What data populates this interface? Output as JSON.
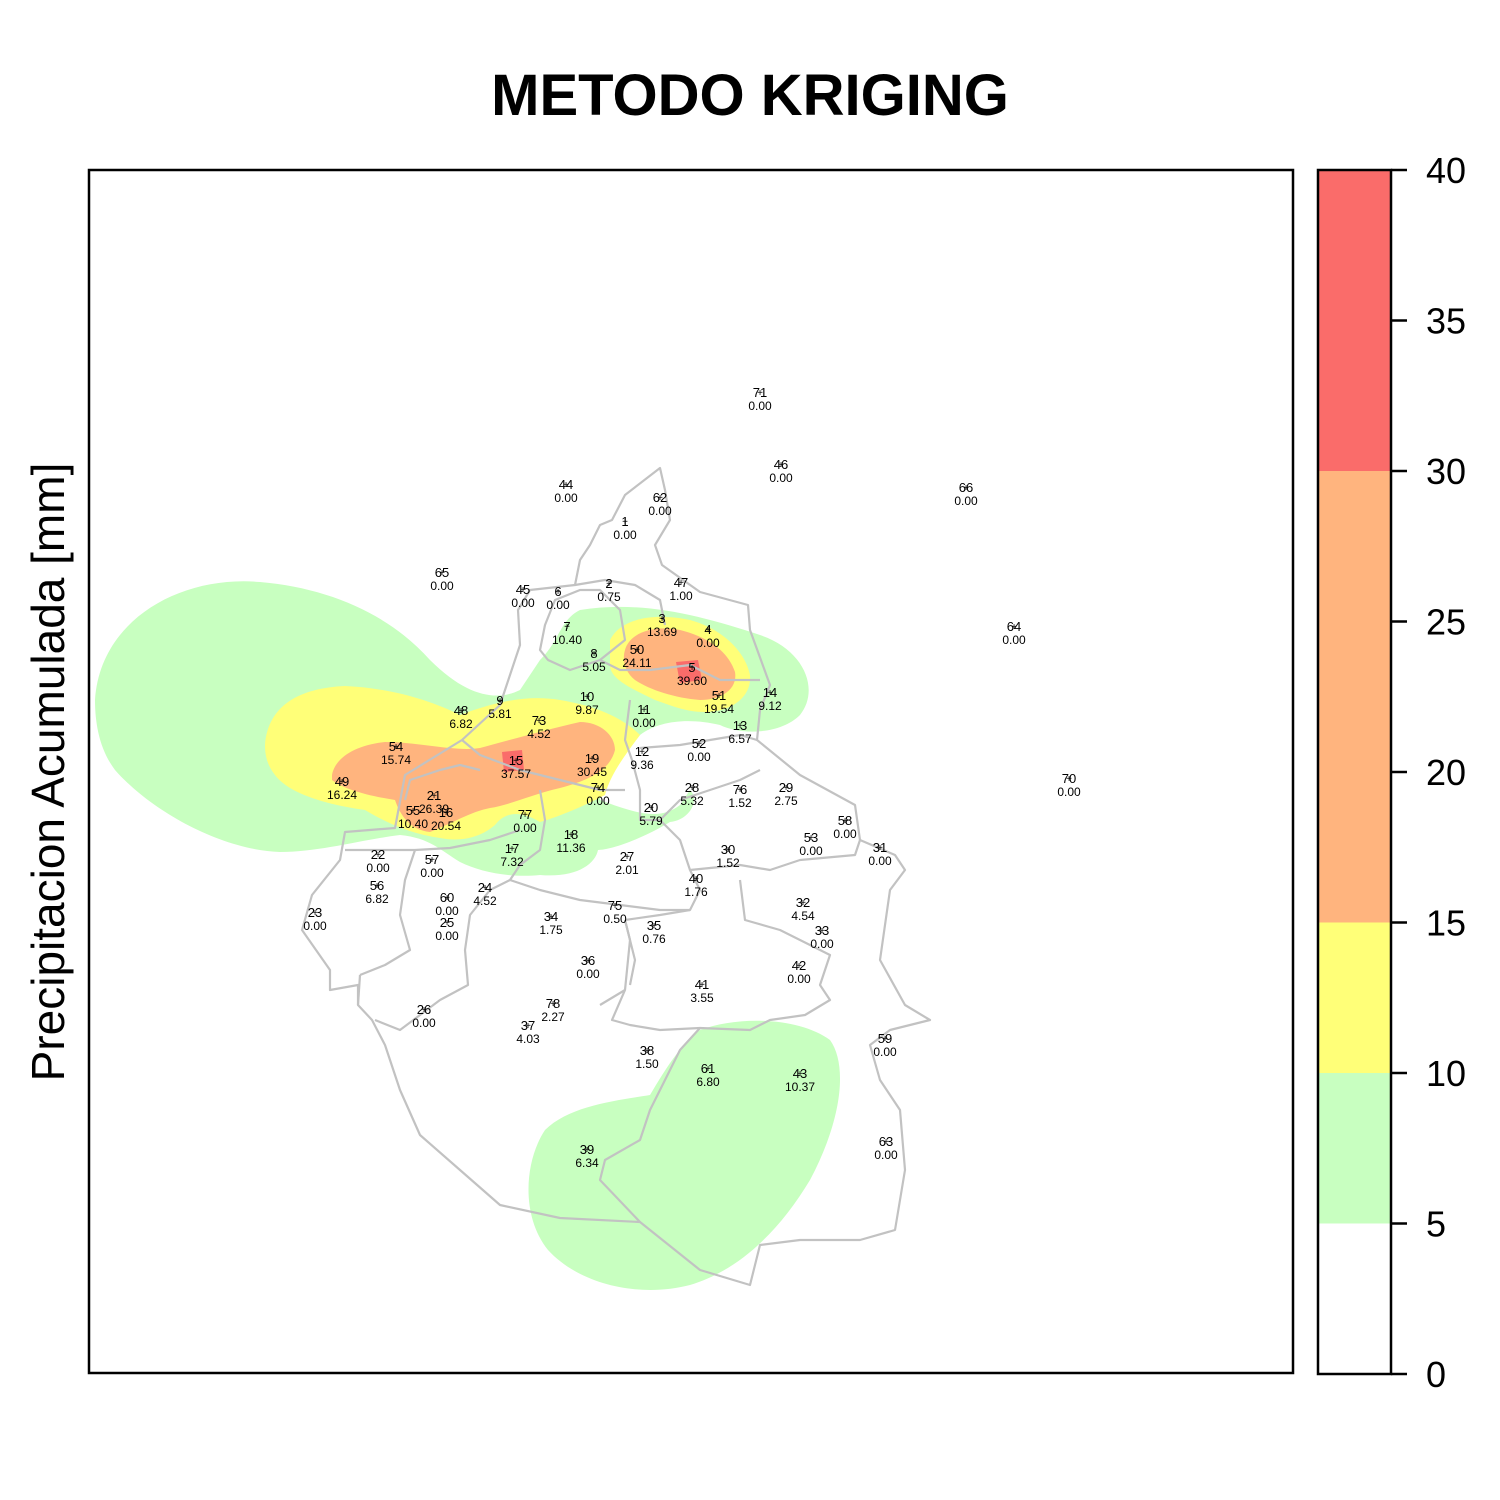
{
  "title": "METODO KRIGING",
  "legend_title": "Precipitacion Acumulada [mm]",
  "colors": {
    "band_0_5": "#ffffff",
    "band_5_10": "#c8ffc0",
    "band_10_15": "#ffff78",
    "band_15_30": "#ffb47e",
    "band_30_40": "#fa6c6a",
    "boundary": "#c2c2c2"
  },
  "chart_data": {
    "type": "heatmap",
    "method": "kriging",
    "legend_ticks": [
      "0",
      "5",
      "10",
      "15",
      "20",
      "25",
      "30",
      "35",
      "40"
    ],
    "legend_bands": [
      {
        "from": 0,
        "to": 5,
        "color": "#ffffff"
      },
      {
        "from": 5,
        "to": 10,
        "color": "#c8ffc0"
      },
      {
        "from": 10,
        "to": 15,
        "color": "#ffff78"
      },
      {
        "from": 15,
        "to": 30,
        "color": "#ffb47e"
      },
      {
        "from": 30,
        "to": 40,
        "color": "#fa6c6a"
      }
    ],
    "stations": [
      {
        "id": "71",
        "value": "0.00"
      },
      {
        "id": "46",
        "value": "0.00"
      },
      {
        "id": "66",
        "value": "0.00"
      },
      {
        "id": "44",
        "value": "0.00"
      },
      {
        "id": "62",
        "value": "0.00"
      },
      {
        "id": "1",
        "value": "0.00"
      },
      {
        "id": "65",
        "value": "0.00"
      },
      {
        "id": "45",
        "value": "0.00"
      },
      {
        "id": "6",
        "value": "0.00"
      },
      {
        "id": "2",
        "value": "0.75"
      },
      {
        "id": "47",
        "value": "1.00"
      },
      {
        "id": "64",
        "value": "0.00"
      },
      {
        "id": "7",
        "value": "10.40"
      },
      {
        "id": "3",
        "value": "13.69"
      },
      {
        "id": "4",
        "value": "0.00"
      },
      {
        "id": "8",
        "value": "5.05"
      },
      {
        "id": "50",
        "value": "24.11"
      },
      {
        "id": "5",
        "value": "39.60"
      },
      {
        "id": "51",
        "value": "19.54"
      },
      {
        "id": "14",
        "value": "9.12"
      },
      {
        "id": "10",
        "value": "9.87"
      },
      {
        "id": "9",
        "value": "5.81"
      },
      {
        "id": "48",
        "value": "6.82"
      },
      {
        "id": "73",
        "value": "4.52"
      },
      {
        "id": "11",
        "value": "0.00"
      },
      {
        "id": "13",
        "value": "6.57"
      },
      {
        "id": "52",
        "value": "0.00"
      },
      {
        "id": "54",
        "value": "15.74"
      },
      {
        "id": "15",
        "value": "37.57"
      },
      {
        "id": "19",
        "value": "30.45"
      },
      {
        "id": "12",
        "value": "9.36"
      },
      {
        "id": "70",
        "value": "0.00"
      },
      {
        "id": "49",
        "value": "16.24"
      },
      {
        "id": "74",
        "value": "0.00"
      },
      {
        "id": "28",
        "value": "5.32"
      },
      {
        "id": "76",
        "value": "1.52"
      },
      {
        "id": "29",
        "value": "2.75"
      },
      {
        "id": "21",
        "value": "26.39"
      },
      {
        "id": "55",
        "value": "10.40"
      },
      {
        "id": "16",
        "value": "20.54"
      },
      {
        "id": "20",
        "value": "5.79"
      },
      {
        "id": "77",
        "value": "0.00"
      },
      {
        "id": "58",
        "value": "0.00"
      },
      {
        "id": "18",
        "value": "11.36"
      },
      {
        "id": "53",
        "value": "0.00"
      },
      {
        "id": "31",
        "value": "0.00"
      },
      {
        "id": "17",
        "value": "7.32"
      },
      {
        "id": "22",
        "value": "0.00"
      },
      {
        "id": "57",
        "value": "0.00"
      },
      {
        "id": "27",
        "value": "2.01"
      },
      {
        "id": "30",
        "value": "1.52"
      },
      {
        "id": "56",
        "value": "6.82"
      },
      {
        "id": "24",
        "value": "4.52"
      },
      {
        "id": "40",
        "value": "1.76"
      },
      {
        "id": "60",
        "value": "0.00"
      },
      {
        "id": "32",
        "value": "4.54"
      },
      {
        "id": "23",
        "value": "0.00"
      },
      {
        "id": "34",
        "value": "1.75"
      },
      {
        "id": "75",
        "value": "0.50"
      },
      {
        "id": "25",
        "value": "0.00"
      },
      {
        "id": "35",
        "value": "0.76"
      },
      {
        "id": "33",
        "value": "0.00"
      },
      {
        "id": "36",
        "value": "0.00"
      },
      {
        "id": "42",
        "value": "0.00"
      },
      {
        "id": "41",
        "value": "3.55"
      },
      {
        "id": "78",
        "value": "2.27"
      },
      {
        "id": "26",
        "value": "0.00"
      },
      {
        "id": "37",
        "value": "4.03"
      },
      {
        "id": "59",
        "value": "0.00"
      },
      {
        "id": "38",
        "value": "1.50"
      },
      {
        "id": "61",
        "value": "6.80"
      },
      {
        "id": "43",
        "value": "10.37"
      },
      {
        "id": "63",
        "value": "0.00"
      },
      {
        "id": "39",
        "value": "6.34"
      }
    ]
  }
}
